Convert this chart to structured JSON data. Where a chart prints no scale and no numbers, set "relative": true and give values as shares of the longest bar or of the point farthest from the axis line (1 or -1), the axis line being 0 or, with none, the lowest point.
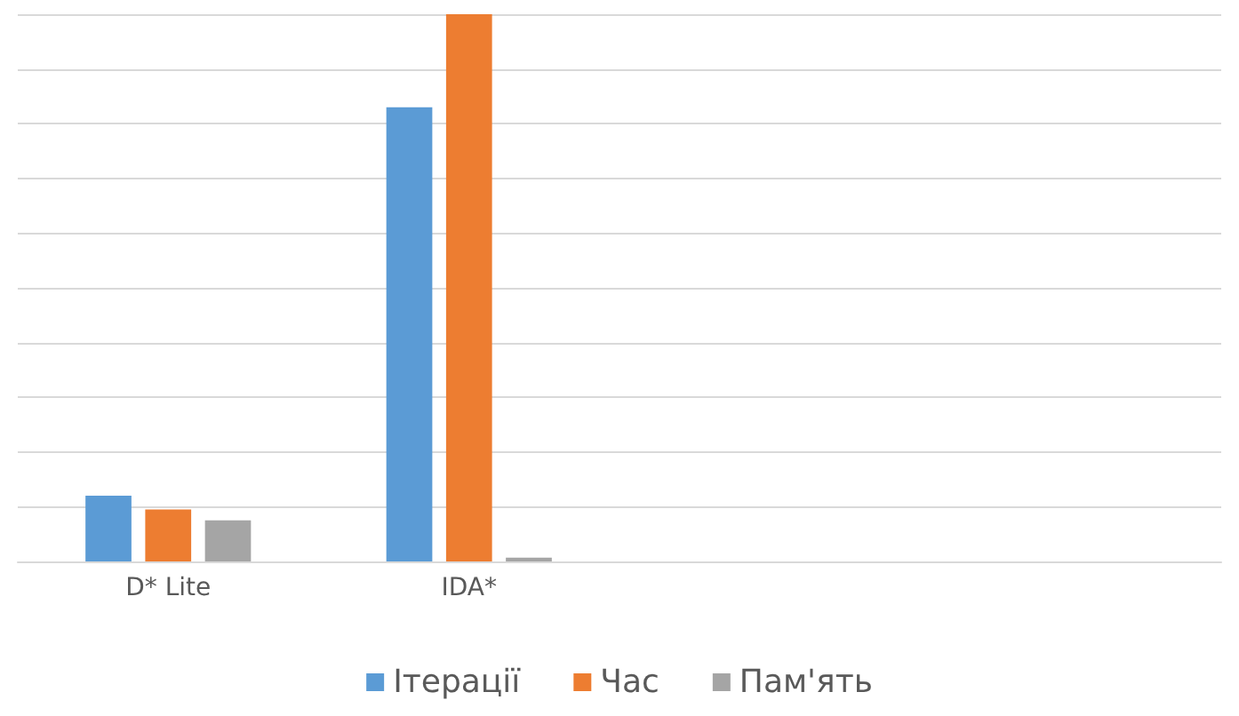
{
  "chart_data": {
    "type": "bar",
    "relative": true,
    "categories": [
      "D* Lite",
      "IDA*",
      null,
      null
    ],
    "series": [
      {
        "name": "Ітерації",
        "color": "#5b9bd5",
        "values": [
          0.12,
          0.83,
          null,
          null
        ]
      },
      {
        "name": "Час",
        "color": "#ed7d31",
        "values": [
          0.095,
          1,
          null,
          null
        ]
      },
      {
        "name": "Пам'ять",
        "color": "#a5a5a5",
        "values": [
          0.075,
          0.007,
          null,
          null
        ]
      }
    ],
    "grid": "y",
    "legend": "bottom"
  }
}
